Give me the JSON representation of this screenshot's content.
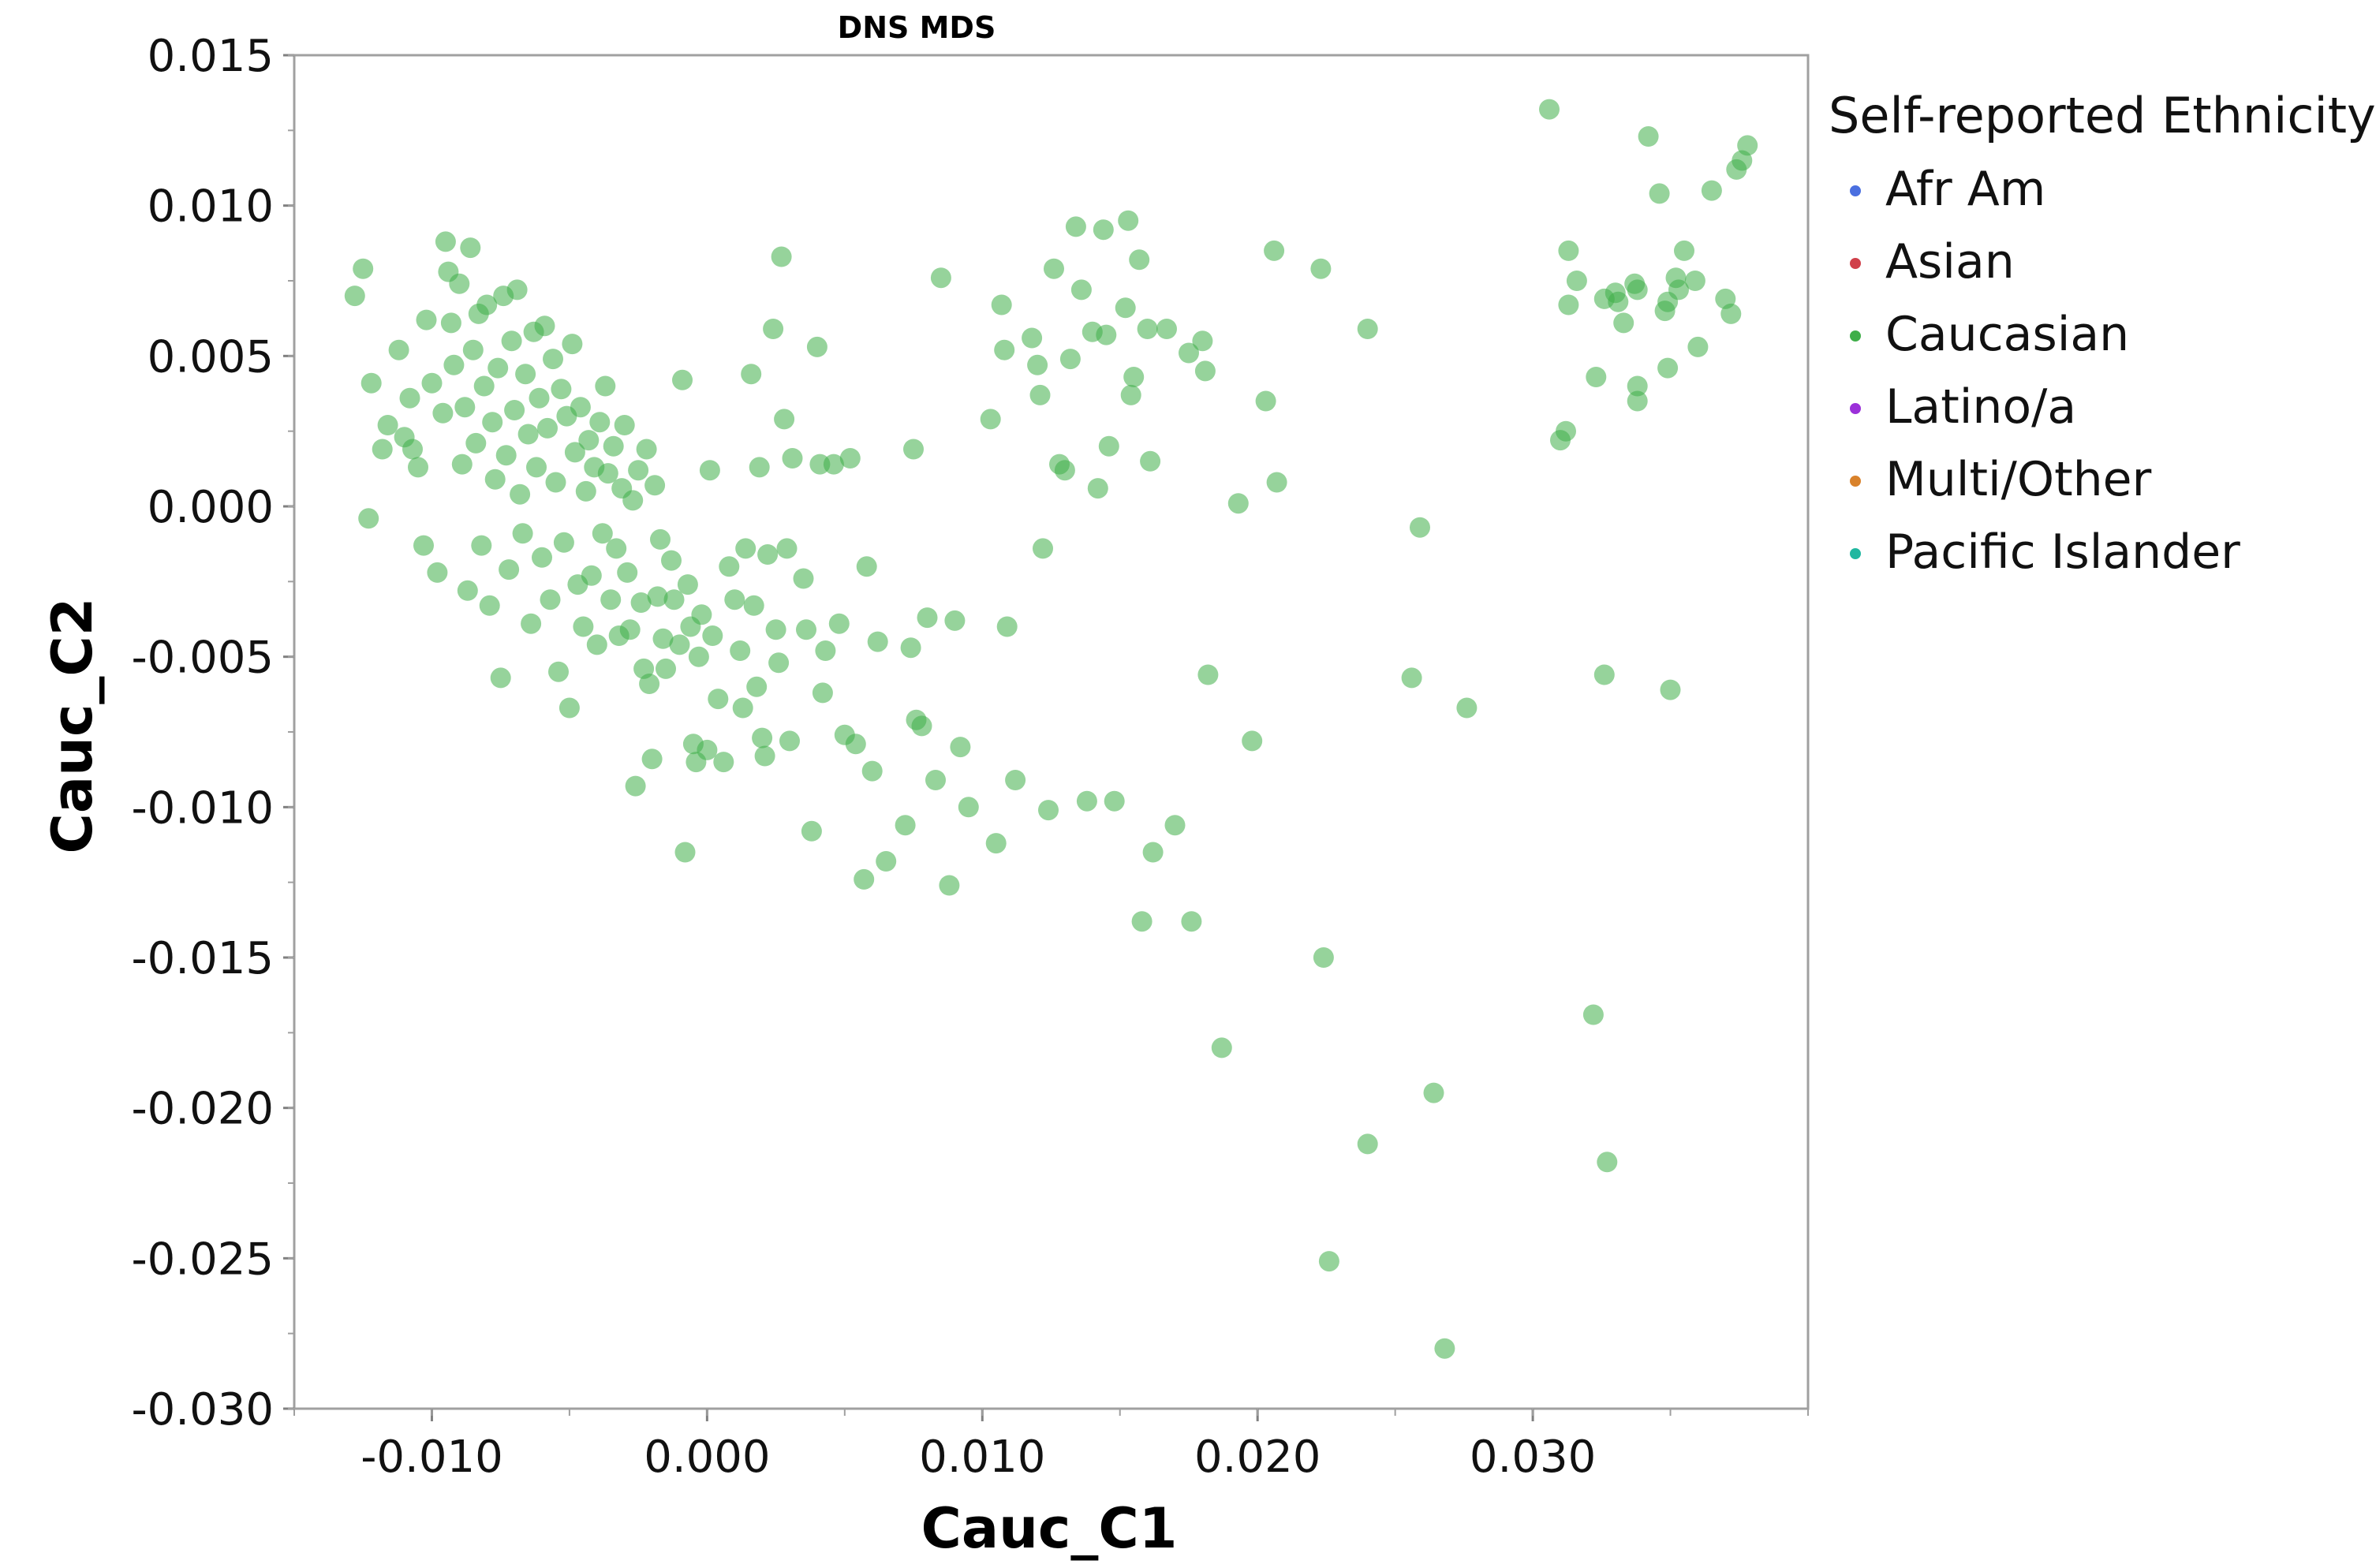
{
  "chart_data": {
    "type": "scatter",
    "title": "DNS MDS",
    "xlabel": "Cauc_C1",
    "ylabel": "Cauc_C2",
    "xlim": [
      -0.015,
      0.04
    ],
    "ylim": [
      -0.03,
      0.015
    ],
    "x_ticks": [
      -0.01,
      0.0,
      0.01,
      0.02,
      0.03
    ],
    "x_tick_labels": [
      "-0.010",
      "0.000",
      "0.010",
      "0.020",
      "0.030"
    ],
    "y_ticks": [
      0.015,
      0.01,
      0.005,
      0.0,
      -0.005,
      -0.01,
      -0.015,
      -0.02,
      -0.025,
      -0.03
    ],
    "y_tick_labels": [
      "0.015",
      "0.010",
      "0.005",
      "0.000",
      "-0.005",
      "-0.010",
      "-0.015",
      "-0.020",
      "-0.025",
      "-0.030"
    ],
    "grid": false,
    "legend_title": "Self-reported Ethnicity",
    "legend_placement": "right",
    "legend": [
      {
        "name": "Afr Am",
        "color": "#4a6fe0"
      },
      {
        "name": "Asian",
        "color": "#d0404a"
      },
      {
        "name": "Caucasian",
        "color": "#3fae49"
      },
      {
        "name": "Latino/a",
        "color": "#9b30d9"
      },
      {
        "name": "Multi/Other",
        "color": "#d9822b"
      },
      {
        "name": "Pacific Islander",
        "color": "#20b7a0"
      }
    ],
    "series": [
      {
        "name": "Caucasian",
        "color": "#3fae49",
        "points": [
          [
            -0.0128,
            0.007
          ],
          [
            -0.0125,
            0.0079
          ],
          [
            -0.0123,
            -0.0004
          ],
          [
            -0.0122,
            0.0041
          ],
          [
            -0.0118,
            0.0019
          ],
          [
            -0.0116,
            0.0027
          ],
          [
            -0.0112,
            0.0052
          ],
          [
            -0.011,
            0.0023
          ],
          [
            -0.0108,
            0.0036
          ],
          [
            -0.0107,
            0.0019
          ],
          [
            -0.0105,
            0.0013
          ],
          [
            -0.0103,
            -0.0013
          ],
          [
            -0.0102,
            0.0062
          ],
          [
            -0.01,
            0.0041
          ],
          [
            -0.0098,
            -0.0022
          ],
          [
            -0.0096,
            0.0031
          ],
          [
            -0.0095,
            0.0088
          ],
          [
            -0.0094,
            0.0078
          ],
          [
            -0.0093,
            0.0061
          ],
          [
            -0.0092,
            0.0047
          ],
          [
            -0.009,
            0.0074
          ],
          [
            -0.0089,
            0.0014
          ],
          [
            -0.0088,
            0.0033
          ],
          [
            -0.0087,
            -0.0028
          ],
          [
            -0.0086,
            0.0086
          ],
          [
            -0.0085,
            0.0052
          ],
          [
            -0.0084,
            0.0021
          ],
          [
            -0.0083,
            0.0064
          ],
          [
            -0.0082,
            -0.0013
          ],
          [
            -0.0081,
            0.004
          ],
          [
            -0.008,
            0.0067
          ],
          [
            -0.0079,
            -0.0033
          ],
          [
            -0.0078,
            0.0028
          ],
          [
            -0.0077,
            0.0009
          ],
          [
            -0.0076,
            0.0046
          ],
          [
            -0.0075,
            -0.0057
          ],
          [
            -0.0074,
            0.007
          ],
          [
            -0.0073,
            0.0017
          ],
          [
            -0.0072,
            -0.0021
          ],
          [
            -0.0071,
            0.0055
          ],
          [
            -0.007,
            0.0032
          ],
          [
            -0.0069,
            0.0072
          ],
          [
            -0.0068,
            0.0004
          ],
          [
            -0.0067,
            -0.0009
          ],
          [
            -0.0066,
            0.0044
          ],
          [
            -0.0065,
            0.0024
          ],
          [
            -0.0064,
            -0.0039
          ],
          [
            -0.0063,
            0.0058
          ],
          [
            -0.0062,
            0.0013
          ],
          [
            -0.0061,
            0.0036
          ],
          [
            -0.006,
            -0.0017
          ],
          [
            -0.0059,
            0.006
          ],
          [
            -0.0058,
            0.0026
          ],
          [
            -0.0057,
            -0.0031
          ],
          [
            -0.0056,
            0.0049
          ],
          [
            -0.0055,
            0.0008
          ],
          [
            -0.0054,
            -0.0055
          ],
          [
            -0.0053,
            0.0039
          ],
          [
            -0.0052,
            -0.0012
          ],
          [
            -0.0051,
            0.003
          ],
          [
            -0.005,
            -0.0067
          ],
          [
            -0.0049,
            0.0054
          ],
          [
            -0.0048,
            0.0018
          ],
          [
            -0.0047,
            -0.0026
          ],
          [
            -0.0046,
            0.0033
          ],
          [
            -0.0045,
            -0.004
          ],
          [
            -0.0044,
            0.0005
          ],
          [
            -0.0043,
            0.0022
          ],
          [
            -0.0042,
            -0.0023
          ],
          [
            -0.0041,
            0.0013
          ],
          [
            -0.004,
            -0.0046
          ],
          [
            -0.0039,
            0.0028
          ],
          [
            -0.0038,
            -0.0009
          ],
          [
            -0.0037,
            0.004
          ],
          [
            -0.0036,
            0.0011
          ],
          [
            -0.0035,
            -0.0031
          ],
          [
            -0.0034,
            0.002
          ],
          [
            -0.0033,
            -0.0014
          ],
          [
            -0.0032,
            -0.0043
          ],
          [
            -0.0031,
            0.0006
          ],
          [
            -0.003,
            0.0027
          ],
          [
            -0.0029,
            -0.0022
          ],
          [
            -0.0028,
            -0.0041
          ],
          [
            -0.0027,
            0.0002
          ],
          [
            -0.0026,
            -0.0093
          ],
          [
            -0.0025,
            0.0012
          ],
          [
            -0.0024,
            -0.0032
          ],
          [
            -0.0023,
            -0.0054
          ],
          [
            -0.0022,
            0.0019
          ],
          [
            -0.0021,
            -0.0059
          ],
          [
            -0.002,
            -0.0084
          ],
          [
            -0.0019,
            0.0007
          ],
          [
            -0.0018,
            -0.003
          ],
          [
            -0.0017,
            -0.0011
          ],
          [
            -0.0016,
            -0.0044
          ],
          [
            -0.0015,
            -0.0054
          ],
          [
            -0.0013,
            -0.0018
          ],
          [
            -0.0012,
            -0.0031
          ],
          [
            -0.001,
            -0.0046
          ],
          [
            -0.0009,
            0.0042
          ],
          [
            -0.0008,
            -0.0115
          ],
          [
            -0.0007,
            -0.0026
          ],
          [
            -0.0006,
            -0.004
          ],
          [
            -0.0005,
            -0.0079
          ],
          [
            -0.0004,
            -0.0085
          ],
          [
            -0.0003,
            -0.005
          ],
          [
            -0.0002,
            -0.0036
          ],
          [
            0.0,
            -0.0081
          ],
          [
            0.0001,
            0.0012
          ],
          [
            0.0002,
            -0.0043
          ],
          [
            0.0004,
            -0.0064
          ],
          [
            0.0006,
            -0.0085
          ],
          [
            0.0008,
            -0.002
          ],
          [
            0.001,
            -0.0031
          ],
          [
            0.0012,
            -0.0048
          ],
          [
            0.0013,
            -0.0067
          ],
          [
            0.0014,
            -0.0014
          ],
          [
            0.0016,
            0.0044
          ],
          [
            0.0017,
            -0.0033
          ],
          [
            0.0018,
            -0.006
          ],
          [
            0.0019,
            0.0013
          ],
          [
            0.002,
            -0.0077
          ],
          [
            0.0021,
            -0.0083
          ],
          [
            0.0022,
            -0.0016
          ],
          [
            0.0024,
            0.0059
          ],
          [
            0.0025,
            -0.0041
          ],
          [
            0.0026,
            -0.0052
          ],
          [
            0.0027,
            0.0083
          ],
          [
            0.0028,
            0.0029
          ],
          [
            0.0029,
            -0.0014
          ],
          [
            0.003,
            -0.0078
          ],
          [
            0.0031,
            0.0016
          ],
          [
            0.0035,
            -0.0024
          ],
          [
            0.0036,
            -0.0041
          ],
          [
            0.0038,
            -0.0108
          ],
          [
            0.004,
            0.0053
          ],
          [
            0.0041,
            0.0014
          ],
          [
            0.0042,
            -0.0062
          ],
          [
            0.0043,
            -0.0048
          ],
          [
            0.0046,
            0.0014
          ],
          [
            0.0048,
            -0.0039
          ],
          [
            0.005,
            -0.0076
          ],
          [
            0.0052,
            0.0016
          ],
          [
            0.0054,
            -0.0079
          ],
          [
            0.0057,
            -0.0124
          ],
          [
            0.0058,
            -0.002
          ],
          [
            0.006,
            -0.0088
          ],
          [
            0.0062,
            -0.0045
          ],
          [
            0.0065,
            -0.0118
          ],
          [
            0.0072,
            -0.0106
          ],
          [
            0.0074,
            -0.0047
          ],
          [
            0.0075,
            0.0019
          ],
          [
            0.0076,
            -0.0071
          ],
          [
            0.0078,
            -0.0073
          ],
          [
            0.008,
            -0.0037
          ],
          [
            0.0083,
            -0.0091
          ],
          [
            0.0085,
            0.0076
          ],
          [
            0.0088,
            -0.0126
          ],
          [
            0.009,
            -0.0038
          ],
          [
            0.0092,
            -0.008
          ],
          [
            0.0095,
            -0.01
          ],
          [
            0.0103,
            0.0029
          ],
          [
            0.0105,
            -0.0112
          ],
          [
            0.0107,
            0.0067
          ],
          [
            0.0108,
            0.0052
          ],
          [
            0.0109,
            -0.004
          ],
          [
            0.0112,
            -0.0091
          ],
          [
            0.0118,
            0.0056
          ],
          [
            0.012,
            0.0047
          ],
          [
            0.0121,
            0.0037
          ],
          [
            0.0122,
            -0.0014
          ],
          [
            0.0124,
            -0.0101
          ],
          [
            0.0126,
            0.0079
          ],
          [
            0.0128,
            0.0014
          ],
          [
            0.013,
            0.0012
          ],
          [
            0.0132,
            0.0049
          ],
          [
            0.0134,
            0.0093
          ],
          [
            0.0136,
            0.0072
          ],
          [
            0.0138,
            -0.0098
          ],
          [
            0.014,
            0.0058
          ],
          [
            0.0142,
            0.0006
          ],
          [
            0.0144,
            0.0092
          ],
          [
            0.0145,
            0.0057
          ],
          [
            0.0146,
            0.002
          ],
          [
            0.0148,
            -0.0098
          ],
          [
            0.0152,
            0.0066
          ],
          [
            0.0153,
            0.0095
          ],
          [
            0.0154,
            0.0037
          ],
          [
            0.0155,
            0.0043
          ],
          [
            0.0157,
            0.0082
          ],
          [
            0.0158,
            -0.0138
          ],
          [
            0.016,
            0.0059
          ],
          [
            0.0161,
            0.0015
          ],
          [
            0.0162,
            -0.0115
          ],
          [
            0.0167,
            0.0059
          ],
          [
            0.017,
            -0.0106
          ],
          [
            0.0175,
            0.0051
          ],
          [
            0.0176,
            -0.0138
          ],
          [
            0.018,
            0.0055
          ],
          [
            0.0181,
            0.0045
          ],
          [
            0.0182,
            -0.0056
          ],
          [
            0.0187,
            -0.018
          ],
          [
            0.0193,
            0.0001
          ],
          [
            0.0198,
            -0.0078
          ],
          [
            0.0203,
            0.0035
          ],
          [
            0.0206,
            0.0085
          ],
          [
            0.0207,
            0.0008
          ],
          [
            0.0223,
            0.0079
          ],
          [
            0.0224,
            -0.015
          ],
          [
            0.0226,
            -0.0251
          ],
          [
            0.024,
            0.0059
          ],
          [
            0.024,
            -0.0212
          ],
          [
            0.0256,
            -0.0057
          ],
          [
            0.0259,
            -0.0007
          ],
          [
            0.0264,
            -0.0195
          ],
          [
            0.0268,
            -0.028
          ],
          [
            0.0276,
            -0.0067
          ],
          [
            0.0306,
            0.0132
          ],
          [
            0.031,
            0.0022
          ],
          [
            0.0312,
            0.0025
          ],
          [
            0.0313,
            0.0085
          ],
          [
            0.0313,
            0.0067
          ],
          [
            0.0316,
            0.0075
          ],
          [
            0.0322,
            -0.0169
          ],
          [
            0.0323,
            0.0043
          ],
          [
            0.0326,
            0.0069
          ],
          [
            0.0326,
            -0.0056
          ],
          [
            0.0327,
            -0.0218
          ],
          [
            0.033,
            0.0071
          ],
          [
            0.0331,
            0.0068
          ],
          [
            0.0333,
            0.0061
          ],
          [
            0.0337,
            0.0074
          ],
          [
            0.0338,
            0.0072
          ],
          [
            0.0338,
            0.004
          ],
          [
            0.0338,
            0.0035
          ],
          [
            0.0342,
            0.0123
          ],
          [
            0.0346,
            0.0104
          ],
          [
            0.0348,
            0.0065
          ],
          [
            0.0349,
            0.0046
          ],
          [
            0.0349,
            0.0068
          ],
          [
            0.035,
            -0.0061
          ],
          [
            0.0352,
            0.0076
          ],
          [
            0.0353,
            0.0072
          ],
          [
            0.0355,
            0.0085
          ],
          [
            0.0359,
            0.0075
          ],
          [
            0.036,
            0.0053
          ],
          [
            0.0365,
            0.0105
          ],
          [
            0.037,
            0.0069
          ],
          [
            0.0372,
            0.0064
          ],
          [
            0.0374,
            0.0112
          ],
          [
            0.0376,
            0.0115
          ],
          [
            0.0378,
            0.012
          ]
        ]
      }
    ]
  }
}
